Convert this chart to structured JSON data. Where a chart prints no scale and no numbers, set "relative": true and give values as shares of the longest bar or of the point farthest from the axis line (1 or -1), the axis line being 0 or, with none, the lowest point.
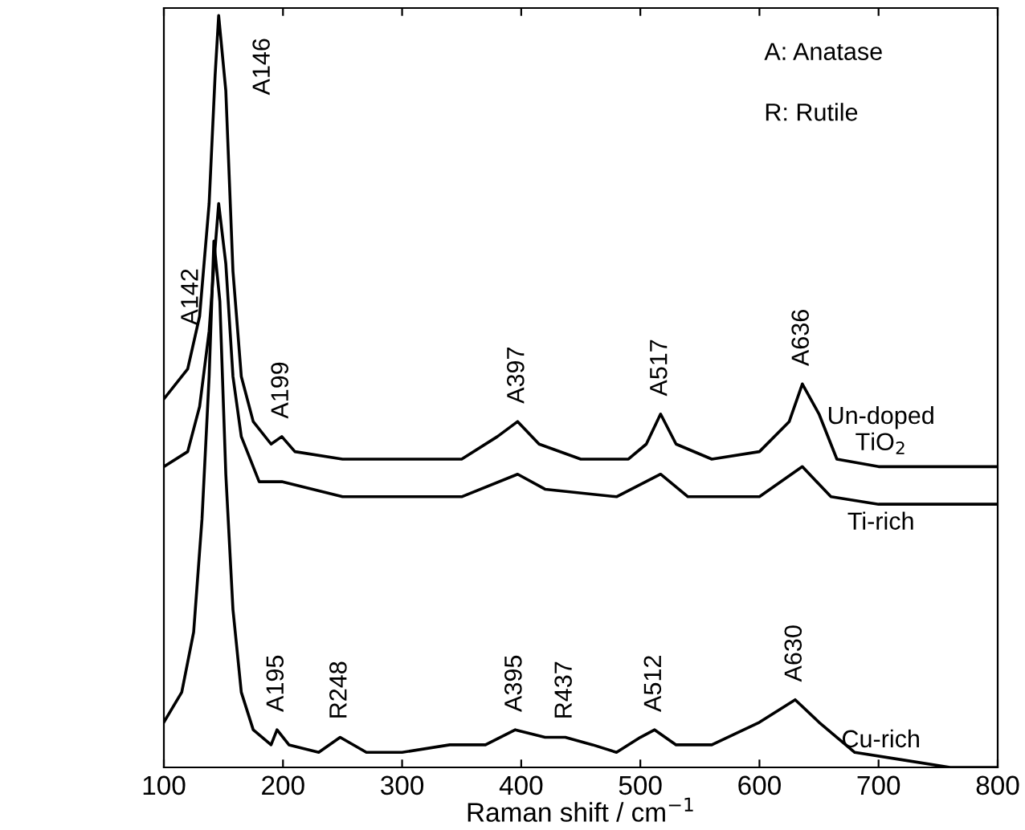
{
  "chart_data": {
    "type": "line",
    "relative": true,
    "xlabel": "Raman shift / cm$^{−1}$",
    "xlim": [
      100,
      800
    ],
    "xticks": [
      100,
      200,
      300,
      400,
      500,
      600,
      700,
      800
    ],
    "tick_labels": "x",
    "grid": false,
    "legend": false,
    "series": [
      {
        "name": "Un-doped\nTiO$_{2}$",
        "color": "#000000",
        "x": [
          100,
          120,
          130,
          138,
          143,
          146,
          152,
          158,
          165,
          175,
          190,
          199,
          210,
          250,
          300,
          350,
          380,
          397,
          415,
          450,
          490,
          505,
          517,
          530,
          560,
          600,
          625,
          636,
          650,
          665,
          700,
          750,
          800
        ],
        "values": [
          0.49,
          0.53,
          0.6,
          0.75,
          0.92,
          1.0,
          0.9,
          0.66,
          0.52,
          0.46,
          0.43,
          0.44,
          0.42,
          0.41,
          0.41,
          0.41,
          0.44,
          0.46,
          0.43,
          0.41,
          0.41,
          0.43,
          0.47,
          0.43,
          0.41,
          0.42,
          0.46,
          0.51,
          0.47,
          0.41,
          0.4,
          0.4,
          0.4
        ]
      },
      {
        "name": "Ti-rich",
        "color": "#000000",
        "x": [
          100,
          120,
          130,
          138,
          143,
          146,
          152,
          158,
          165,
          180,
          199,
          250,
          300,
          350,
          397,
          420,
          480,
          517,
          540,
          600,
          636,
          660,
          700,
          800
        ],
        "values": [
          0.4,
          0.42,
          0.48,
          0.58,
          0.69,
          0.75,
          0.67,
          0.52,
          0.44,
          0.38,
          0.38,
          0.36,
          0.36,
          0.36,
          0.39,
          0.37,
          0.36,
          0.39,
          0.36,
          0.36,
          0.4,
          0.36,
          0.35,
          0.35
        ]
      },
      {
        "name": "Cu-rich",
        "color": "#000000",
        "x": [
          100,
          115,
          125,
          132,
          138,
          142,
          147,
          152,
          158,
          165,
          175,
          190,
          195,
          205,
          230,
          248,
          270,
          300,
          340,
          370,
          395,
          420,
          437,
          460,
          480,
          500,
          512,
          530,
          560,
          600,
          630,
          650,
          680,
          720,
          760,
          800
        ],
        "values": [
          0.06,
          0.1,
          0.18,
          0.33,
          0.52,
          0.7,
          0.62,
          0.39,
          0.21,
          0.1,
          0.05,
          0.03,
          0.05,
          0.03,
          0.02,
          0.04,
          0.02,
          0.02,
          0.03,
          0.03,
          0.05,
          0.04,
          0.04,
          0.03,
          0.02,
          0.04,
          0.05,
          0.03,
          0.03,
          0.06,
          0.09,
          0.06,
          0.02,
          0.01,
          0.0,
          0.0
        ]
      }
    ],
    "annotations": [
      {
        "text": "A146",
        "x": 146,
        "y": 1.0
      },
      {
        "text": "A142",
        "x": 142,
        "y": 0.7
      },
      {
        "text": "A199",
        "x": 199,
        "y": 0.44
      },
      {
        "text": "A397",
        "x": 397,
        "y": 0.46
      },
      {
        "text": "A517",
        "x": 517,
        "y": 0.47
      },
      {
        "text": "A636",
        "x": 636,
        "y": 0.51
      },
      {
        "text": "A195",
        "x": 195,
        "y": 0.05
      },
      {
        "text": "R248",
        "x": 248,
        "y": 0.04
      },
      {
        "text": "A395",
        "x": 395,
        "y": 0.05
      },
      {
        "text": "R437",
        "x": 437,
        "y": 0.04
      },
      {
        "text": "A512",
        "x": 512,
        "y": 0.05
      },
      {
        "text": "A630",
        "x": 630,
        "y": 0.09
      },
      "A: Anatase",
      "R: Rutile"
    ]
  }
}
